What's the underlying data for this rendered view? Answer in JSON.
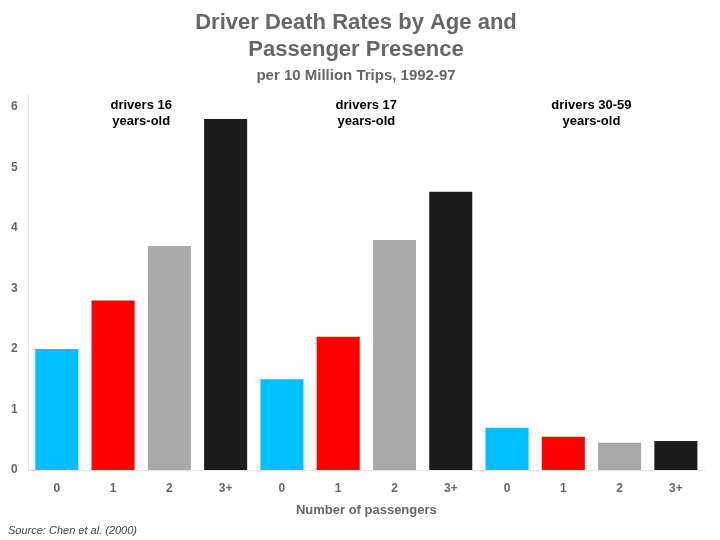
{
  "chart_data": {
    "type": "bar",
    "title": [
      "Driver Death Rates by Age and",
      "Passenger Presence"
    ],
    "subtitle": "per 10 Million Trips, 1992-97",
    "x_label": "Number of passengers",
    "source": "Source: Chen et al. (2000)",
    "annotations": [
      "drivers 16\nyears-old",
      "drivers 17\nyears-old",
      "drivers 30-59\nyears-old"
    ],
    "categories": [
      "0",
      "1",
      "2",
      "3+",
      "0",
      "1",
      "2",
      "3+",
      "0",
      "1",
      "2",
      "3+"
    ],
    "values": [
      2.0,
      2.8,
      3.7,
      5.8,
      1.5,
      2.2,
      3.8,
      4.6,
      0.7,
      0.55,
      0.45,
      0.48
    ],
    "colors": [
      "#00BFFF",
      "#FF0000",
      "#A9A9A9",
      "#1C1C1C",
      "#00BFFF",
      "#FF0000",
      "#A9A9A9",
      "#1C1C1C",
      "#00BFFF",
      "#FF0000",
      "#A9A9A9",
      "#1C1C1C"
    ],
    "ylim": [
      0,
      6.2
    ],
    "yticks": [
      0,
      1,
      2,
      3,
      4,
      5,
      6
    ],
    "grid": false
  }
}
